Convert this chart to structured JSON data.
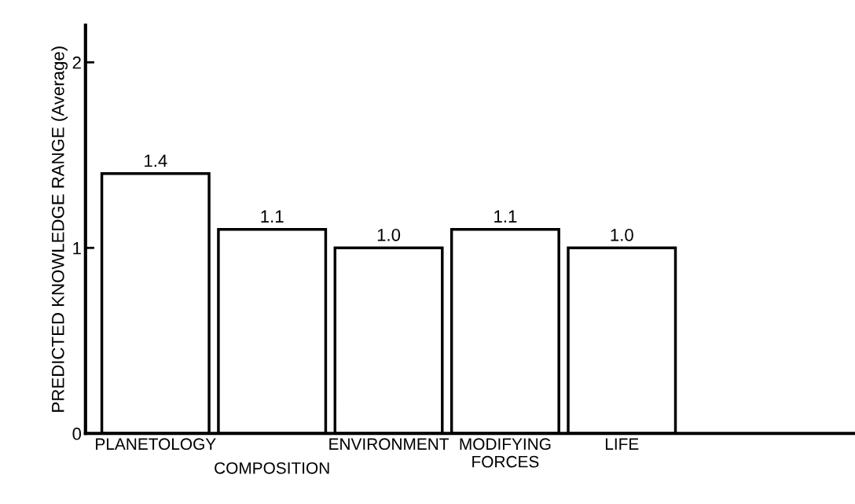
{
  "chart_data": {
    "type": "bar",
    "ylabel": "PREDICTED KNOWLEDGE RANGE (Average)",
    "categories": [
      "PLANETOLOGY",
      "COMPOSITION",
      "ENVIRONMENT",
      "MODIFYING\nFORCES",
      "LIFE"
    ],
    "values": [
      1.4,
      1.1,
      1.0,
      1.1,
      1.0
    ],
    "color": "#ffffff",
    "value_labels": [
      "1.4",
      "1.1",
      "1.0",
      "1.1",
      "1.0"
    ],
    "ylim": [
      0,
      2.2
    ],
    "yticks": [
      0,
      1,
      2
    ],
    "grid": false
  }
}
